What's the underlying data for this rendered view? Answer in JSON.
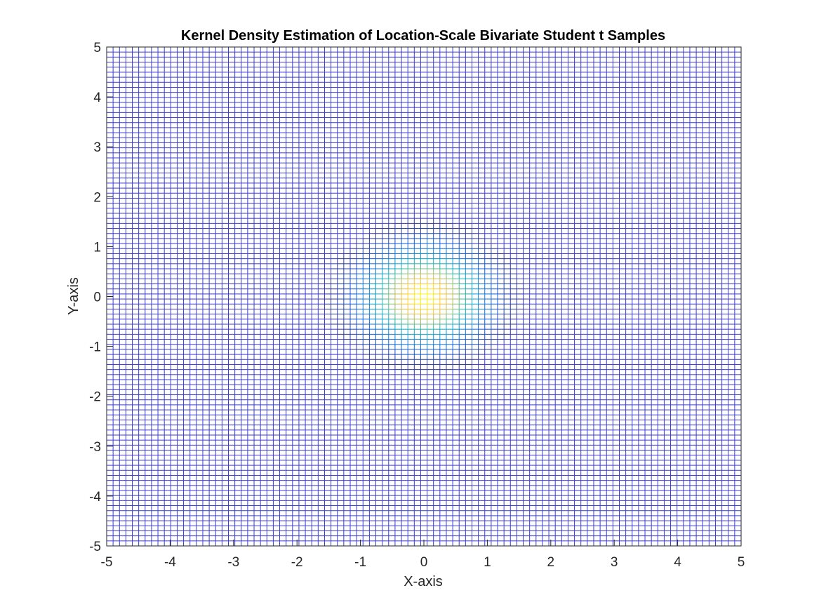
{
  "chart_data": {
    "type": "heatmap",
    "title": "Kernel Density Estimation of Location-Scale Bivariate Student t Samples",
    "xlabel": "X-axis",
    "ylabel": "Y-axis",
    "xlim": [
      -5,
      5
    ],
    "ylim": [
      -5,
      5
    ],
    "xticks": [
      "-5",
      "-4",
      "-3",
      "-2",
      "-1",
      "0",
      "1",
      "2",
      "3",
      "4",
      "5"
    ],
    "yticks": [
      "-5",
      "-4",
      "-3",
      "-2",
      "-1",
      "0",
      "1",
      "2",
      "3",
      "4",
      "5"
    ],
    "grid_points": 100,
    "grid_spacing": 0.101,
    "density_peak_location": [
      0,
      0
    ],
    "density_spread": 0.55,
    "colormap": "parula",
    "colormap_stops": [
      "#352a87",
      "#0f5cdd",
      "#1481d6",
      "#06a4ca",
      "#2eb7a4",
      "#87bf77",
      "#d1bb59",
      "#fec832",
      "#f9fb0e"
    ],
    "grid_line_color_low": "#3b3bd0",
    "background": "#ffffff"
  }
}
